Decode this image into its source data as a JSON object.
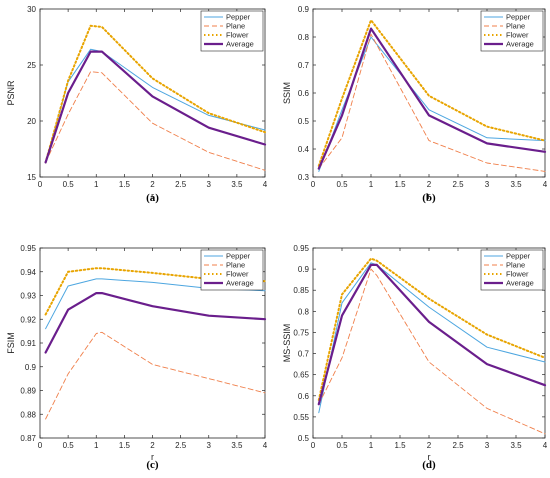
{
  "colors": {
    "Pepper": "#4da6e0",
    "Plane": "#f07f4a",
    "Flower": "#e8a400",
    "Average": "#6a1e8c",
    "axis": "#262626"
  },
  "chart_data": [
    {
      "type": "line",
      "caption": "(a)",
      "xlabel": "r",
      "ylabel": "PSNR",
      "xlim": [
        0,
        4
      ],
      "ylim": [
        15,
        30
      ],
      "xticks": [
        "0",
        "0.5",
        "1",
        "1.5",
        "2",
        "2.5",
        "3",
        "3.5",
        "4"
      ],
      "yticks": [
        "15",
        "20",
        "25",
        "30"
      ],
      "legend_position": "top-right",
      "x": [
        0.1,
        0.5,
        0.9,
        1.1,
        2,
        3,
        4
      ],
      "series": [
        {
          "name": "Pepper",
          "style": "solid",
          "values": [
            16.3,
            23.5,
            26.4,
            26.2,
            23.0,
            20.5,
            19.2
          ]
        },
        {
          "name": "Plane",
          "style": "dashed",
          "values": [
            16.3,
            20.6,
            24.4,
            24.3,
            19.8,
            17.2,
            15.6
          ]
        },
        {
          "name": "Flower",
          "style": "dotted",
          "values": [
            16.3,
            23.6,
            28.5,
            28.4,
            23.8,
            20.7,
            19.0
          ]
        },
        {
          "name": "Average",
          "style": "thick",
          "values": [
            16.3,
            22.5,
            26.2,
            26.2,
            22.2,
            19.4,
            17.9
          ]
        }
      ]
    },
    {
      "type": "line",
      "caption": "(b)",
      "xlabel": "r",
      "ylabel": "SSIM",
      "xlim": [
        0,
        4
      ],
      "ylim": [
        0.3,
        0.9
      ],
      "xticks": [
        "0",
        "0.5",
        "1",
        "1.5",
        "2",
        "2.5",
        "3",
        "3.5",
        "4"
      ],
      "yticks": [
        "0.3",
        "0.4",
        "0.5",
        "0.6",
        "0.7",
        "0.8",
        "0.9"
      ],
      "legend_position": "top-right",
      "x": [
        0.1,
        0.5,
        1.0,
        2,
        3,
        4
      ],
      "series": [
        {
          "name": "Pepper",
          "style": "solid",
          "values": [
            0.32,
            0.54,
            0.8,
            0.54,
            0.44,
            0.43
          ]
        },
        {
          "name": "Plane",
          "style": "dashed",
          "values": [
            0.33,
            0.44,
            0.81,
            0.43,
            0.35,
            0.32
          ]
        },
        {
          "name": "Flower",
          "style": "dotted",
          "values": [
            0.34,
            0.58,
            0.86,
            0.59,
            0.48,
            0.43
          ]
        },
        {
          "name": "Average",
          "style": "thick",
          "values": [
            0.33,
            0.52,
            0.83,
            0.52,
            0.42,
            0.39
          ]
        }
      ]
    },
    {
      "type": "line",
      "caption": "(c)",
      "xlabel": "r",
      "ylabel": "FSIM",
      "xlim": [
        0,
        4
      ],
      "ylim": [
        0.87,
        0.95
      ],
      "xticks": [
        "0",
        "0.5",
        "1",
        "1.5",
        "2",
        "2.5",
        "3",
        "3.5",
        "4"
      ],
      "yticks": [
        "0.87",
        "0.88",
        "0.89",
        "0.9",
        "0.91",
        "0.92",
        "0.93",
        "0.94",
        "0.95"
      ],
      "legend_position": "top-right",
      "x": [
        0.1,
        0.5,
        1.0,
        1.1,
        2,
        3,
        4
      ],
      "series": [
        {
          "name": "Pepper",
          "style": "solid",
          "values": [
            0.916,
            0.934,
            0.937,
            0.937,
            0.9355,
            0.933,
            0.932
          ]
        },
        {
          "name": "Plane",
          "style": "dashed",
          "values": [
            0.878,
            0.897,
            0.914,
            0.9145,
            0.901,
            0.895,
            0.889
          ]
        },
        {
          "name": "Flower",
          "style": "dotted",
          "values": [
            0.922,
            0.94,
            0.9415,
            0.9415,
            0.9395,
            0.937,
            0.936
          ]
        },
        {
          "name": "Average",
          "style": "thick",
          "values": [
            0.906,
            0.924,
            0.931,
            0.931,
            0.9255,
            0.9215,
            0.92
          ]
        }
      ]
    },
    {
      "type": "line",
      "caption": "(d)",
      "xlabel": "r",
      "ylabel": "MS-SSIM",
      "xlim": [
        0,
        4
      ],
      "ylim": [
        0.5,
        0.95
      ],
      "xticks": [
        "0",
        "0.5",
        "1",
        "1.5",
        "2",
        "2.5",
        "3",
        "3.5",
        "4"
      ],
      "yticks": [
        "0.5",
        "0.55",
        "0.6",
        "0.65",
        "0.7",
        "0.75",
        "0.8",
        "0.85",
        "0.9",
        "0.95"
      ],
      "legend_position": "top-right",
      "x": [
        0.1,
        0.5,
        1.0,
        1.1,
        2,
        3,
        4
      ],
      "series": [
        {
          "name": "Pepper",
          "style": "solid",
          "values": [
            0.56,
            0.82,
            0.915,
            0.91,
            0.81,
            0.715,
            0.68
          ]
        },
        {
          "name": "Plane",
          "style": "dashed",
          "values": [
            0.58,
            0.69,
            0.9,
            0.885,
            0.68,
            0.57,
            0.51
          ]
        },
        {
          "name": "Flower",
          "style": "dotted",
          "values": [
            0.59,
            0.84,
            0.925,
            0.92,
            0.83,
            0.745,
            0.69
          ]
        },
        {
          "name": "Average",
          "style": "thick",
          "values": [
            0.58,
            0.79,
            0.91,
            0.91,
            0.775,
            0.675,
            0.625
          ]
        }
      ]
    }
  ]
}
